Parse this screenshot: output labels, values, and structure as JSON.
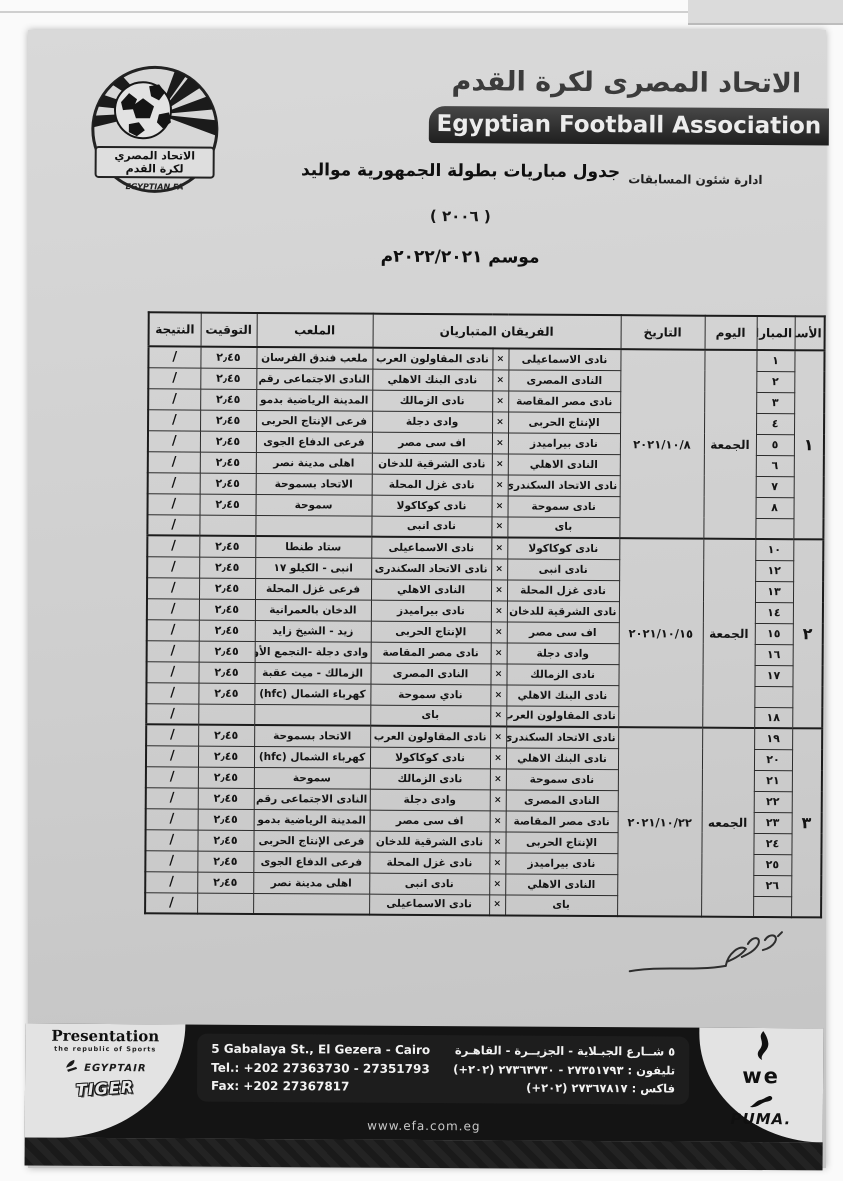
{
  "header": {
    "org_title_ar": "الاتحاد المصرى لكرة القدم",
    "org_title_en": "Egyptian Football Association",
    "dept": "ادارة شئون المسابقات",
    "doc_title": "جدول مباريات بطولة الجمهورية مواليد",
    "birth_year": "( ٢٠٠٦ )",
    "season": "موسم ٢٠٢٢/٢٠٢١م",
    "logo": {
      "line1": "الاتحاد المصري",
      "line2": "لكرة القدم",
      "line3": "EGYPTIAN FA"
    }
  },
  "table": {
    "headers": {
      "week": "الأسبوع",
      "match": "المباراة",
      "day": "اليوم",
      "date": "التاريخ",
      "teams": "الفريقان المتباريان",
      "stadium": "الملعب",
      "time": "التوقيت",
      "result": "النتيجة"
    },
    "vs_mark": "×",
    "weeks": [
      {
        "week_no": "١",
        "day": "الجمعة",
        "date": "٢٠٢١/١٠/٨",
        "rows": [
          {
            "no": "١",
            "team1": "نادى الاسماعيلى",
            "team2": "نادى المقاولون العرب",
            "stadium": "ملعب فندق الفرسان",
            "time": "٢٫٤٥",
            "result": "/"
          },
          {
            "no": "٢",
            "team1": "النادى المصرى",
            "team2": "نادى البنك الاهلي",
            "stadium": "النادى الاجتماعى رقم ١",
            "time": "٢٫٤٥",
            "result": "/"
          },
          {
            "no": "٣",
            "team1": "نادى مصر المقاصة",
            "team2": "نادى الزمالك",
            "stadium": "المدينة الرياضية بدمو",
            "time": "٢٫٤٥",
            "result": "/"
          },
          {
            "no": "٤",
            "team1": "الإنتاج الحربى",
            "team2": "وادى دجلة",
            "stadium": "فرعى الإنتاج الحربى",
            "time": "٢٫٤٥",
            "result": "/"
          },
          {
            "no": "٥",
            "team1": "نادى بيراميدز",
            "team2": "اف سى مصر",
            "stadium": "فرعى الدفاع الجوى",
            "time": "٢٫٤٥",
            "result": "/"
          },
          {
            "no": "٦",
            "team1": "النادى الاهلي",
            "team2": "نادى الشرقية للدخان",
            "stadium": "اهلى مدينة نصر",
            "time": "٢٫٤٥",
            "result": "/"
          },
          {
            "no": "٧",
            "team1": "نادى الاتحاد السكندرى",
            "team2": "نادى غزل المحلة",
            "stadium": "الاتحاد بسموحة",
            "time": "٢٫٤٥",
            "result": "/"
          },
          {
            "no": "٨",
            "team1": "نادى سموحة",
            "team2": "نادى كوكاكولا",
            "stadium": "سموحة",
            "time": "٢٫٤٥",
            "result": "/"
          },
          {
            "no": "",
            "team1": "باى",
            "team2": "نادى انبى",
            "stadium": "",
            "time": "",
            "result": "/"
          }
        ]
      },
      {
        "week_no": "٢",
        "day": "الجمعة",
        "date": "٢٠٢١/١٠/١٥",
        "rows": [
          {
            "no": "١٠",
            "team1": "نادى كوكاكولا",
            "team2": "نادى الاسماعيلى",
            "stadium": "ستاد طنطا",
            "time": "٢٫٤٥",
            "result": "/"
          },
          {
            "no": "١٢",
            "team1": "نادى انبى",
            "team2": "نادى الاتحاد السكندرى",
            "stadium": "انبى - الكيلو ١٧",
            "time": "٢٫٤٥",
            "result": "/"
          },
          {
            "no": "١٣",
            "team1": "نادى غزل المحلة",
            "team2": "النادى الاهلي",
            "stadium": "فرعى غزل المحلة",
            "time": "٢٫٤٥",
            "result": "/"
          },
          {
            "no": "١٤",
            "team1": "نادى الشرقية للدخان",
            "team2": "نادى بيراميدز",
            "stadium": "الدخان بالعمرانية",
            "time": "٢٫٤٥",
            "result": "/"
          },
          {
            "no": "١٥",
            "team1": "اف سى مصر",
            "team2": "الإنتاج الحربى",
            "stadium": "زيد - الشيخ زايد",
            "time": "٢٫٤٥",
            "result": "/"
          },
          {
            "no": "١٦",
            "team1": "وادى دجلة",
            "team2": "نادى مصر المقاصة",
            "stadium": "وادى دجلة -التجمع الأول",
            "time": "٢٫٤٥",
            "result": "/"
          },
          {
            "no": "١٧",
            "team1": "نادى الزمالك",
            "team2": "النادى المصرى",
            "stadium": "الزمالك - ميت عقبة",
            "time": "٢٫٤٥",
            "result": "/"
          },
          {
            "no": "",
            "team1": "نادى البنك الاهلي",
            "team2": "نادي سموحة",
            "stadium": "كهرباء الشمال (hfc)",
            "time": "٢٫٤٥",
            "result": "/"
          },
          {
            "no": "١٨",
            "team1": "نادى المقاولون العرب",
            "team2": "باى",
            "stadium": "",
            "time": "",
            "result": "/"
          }
        ]
      },
      {
        "week_no": "٣",
        "day": "الجمعه",
        "date": "٢٠٢١/١٠/٢٢",
        "rows": [
          {
            "no": "١٩",
            "team1": "نادى الاتحاد السكندرى",
            "team2": "نادى المقاولون العرب",
            "stadium": "الاتحاد بسموحة",
            "time": "٢٫٤٥",
            "result": "/"
          },
          {
            "no": "٢٠",
            "team1": "نادى البنك الاهلي",
            "team2": "نادى كوكاكولا",
            "stadium": "كهرباء الشمال (hfc)",
            "time": "٢٫٤٥",
            "result": "/"
          },
          {
            "no": "٢١",
            "team1": "نادى سموحة",
            "team2": "نادى الزمالك",
            "stadium": "سموحة",
            "time": "٢٫٤٥",
            "result": "/"
          },
          {
            "no": "٢٢",
            "team1": "النادى المصرى",
            "team2": "وادى دجلة",
            "stadium": "النادى الاجتماعى رقم ١",
            "time": "٢٫٤٥",
            "result": "/"
          },
          {
            "no": "٢٣",
            "team1": "نادى مصر المقاصة",
            "team2": "اف سى مصر",
            "stadium": "المدينة الرياضية بدمو",
            "time": "٢٫٤٥",
            "result": "/"
          },
          {
            "no": "٢٤",
            "team1": "الإنتاج الحربى",
            "team2": "نادى الشرقية للدخان",
            "stadium": "فرعى الإنتاج الحربى",
            "time": "٢٫٤٥",
            "result": "/"
          },
          {
            "no": "٢٥",
            "team1": "نادى بيراميدز",
            "team2": "نادى غزل المحلة",
            "stadium": "فرعى الدفاع الجوى",
            "time": "٢٫٤٥",
            "result": "/"
          },
          {
            "no": "٢٦",
            "team1": "النادى الاهلي",
            "team2": "نادى انبى",
            "stadium": "اهلى مدينة نصر",
            "time": "٢٫٤٥",
            "result": "/"
          },
          {
            "no": "",
            "team1": "باى",
            "team2": "نادى الاسماعيلى",
            "stadium": "",
            "time": "",
            "result": "/"
          }
        ]
      }
    ]
  },
  "footer": {
    "address_en_1": "5 Gabalaya St., El Gezera - Cairo",
    "address_en_2": "Tel.: +202 27363730 - 27351793",
    "address_en_3": "Fax: +202 27367817",
    "address_ar_1": "٥ شــارع الجبـلاية - الجزيــرة - القاهـرة",
    "address_ar_2": "تليفون : ٢٧٣٥١٧٩٣ - ٢٧٣٦٣٧٣٠ ⁦(+٢٠٢)⁩",
    "address_ar_3": "فاكس : ٢٧٣٦٧٨١٧ ⁦(+٢٠٢)⁩",
    "website": "www.efa.com.eg",
    "sponsors": {
      "presentation": "Presentation",
      "presentation_sub": "the republic of Sports",
      "egyptair": "EGYPTAIR",
      "tiger": "TIGER",
      "we": "we",
      "puma": "PUMA."
    }
  }
}
